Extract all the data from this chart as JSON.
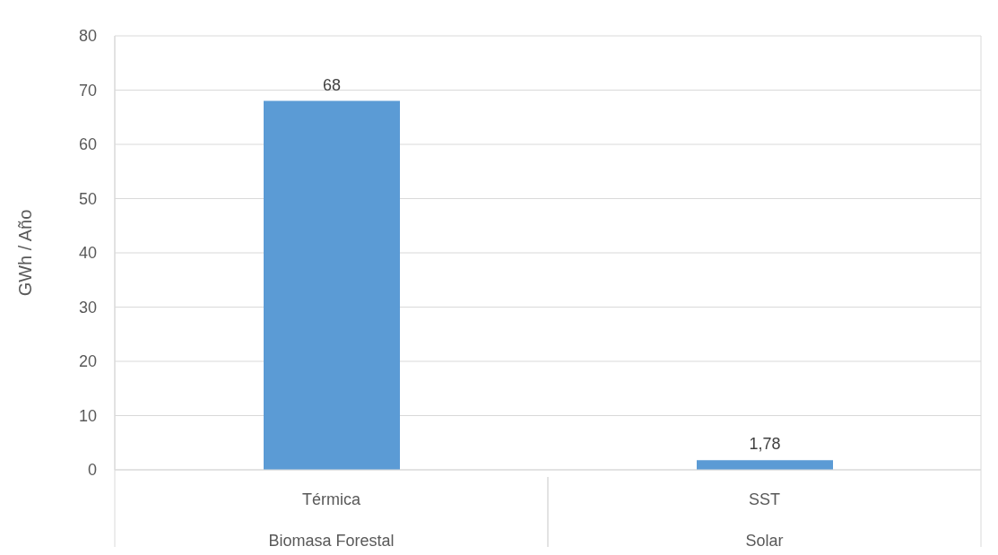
{
  "chart_data": {
    "type": "bar",
    "ylabel": "GWh / Año",
    "categories": [
      "Térmica",
      "SST"
    ],
    "values": [
      68,
      1.78
    ],
    "value_labels": [
      "68",
      "1,78"
    ],
    "color": "#5b9bd5",
    "ylim": [
      0,
      80
    ],
    "yticks": [
      0,
      10,
      20,
      30,
      40,
      50,
      60,
      70,
      80
    ],
    "grid": "y",
    "annotations": [
      "Biomasa Forestal",
      "Solar"
    ]
  }
}
